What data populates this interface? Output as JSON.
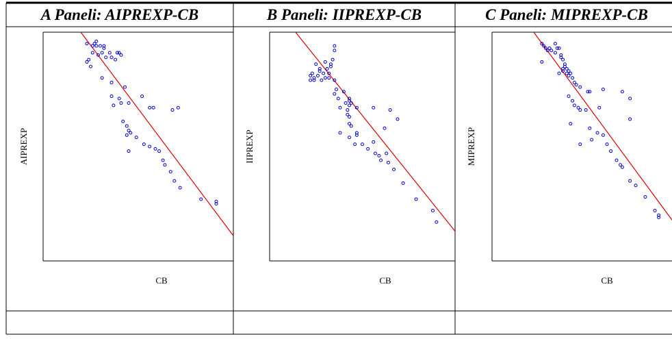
{
  "panels": [
    {
      "title": "A Paneli: AIPREXP-CB",
      "xlabel": "CB",
      "ylabel": "AIPREXP",
      "chart_data": {
        "type": "scatter",
        "title": "A Paneli: AIPREXP-CB",
        "xlabel": "CB",
        "ylabel": "AIPREXP",
        "xlim": [
          0,
          100
        ],
        "ylim": [
          0,
          100
        ],
        "point_color": "#0000cc",
        "line_color": "#dd0000",
        "fit_line": [
          [
            18,
            102
          ],
          [
            100,
            11
          ]
        ],
        "points": [
          [
            23,
            95
          ],
          [
            26,
            94
          ],
          [
            28,
            94
          ],
          [
            30,
            94
          ],
          [
            32,
            94
          ],
          [
            28,
            96
          ],
          [
            27,
            95
          ],
          [
            32,
            93
          ],
          [
            26,
            91
          ],
          [
            29,
            90
          ],
          [
            31,
            91
          ],
          [
            35,
            91
          ],
          [
            39,
            91
          ],
          [
            41,
            90
          ],
          [
            40,
            91
          ],
          [
            36,
            89
          ],
          [
            33,
            89
          ],
          [
            38,
            88
          ],
          [
            24,
            88
          ],
          [
            23,
            87
          ],
          [
            25,
            85
          ],
          [
            31,
            80
          ],
          [
            36,
            78
          ],
          [
            43,
            76
          ],
          [
            52,
            72
          ],
          [
            36,
            72
          ],
          [
            40,
            71
          ],
          [
            41,
            69
          ],
          [
            37,
            68
          ],
          [
            45,
            69
          ],
          [
            56,
            67
          ],
          [
            58,
            67
          ],
          [
            68,
            66
          ],
          [
            71,
            67
          ],
          [
            42,
            61
          ],
          [
            44,
            59
          ],
          [
            45,
            57
          ],
          [
            46,
            56
          ],
          [
            44,
            55
          ],
          [
            49,
            54
          ],
          [
            53,
            51
          ],
          [
            56,
            50
          ],
          [
            59,
            49
          ],
          [
            61,
            48
          ],
          [
            45,
            48
          ],
          [
            63,
            44
          ],
          [
            64,
            42
          ],
          [
            67,
            39
          ],
          [
            69,
            35
          ],
          [
            72,
            32
          ],
          [
            83,
            27
          ],
          [
            91,
            26
          ],
          [
            91,
            25
          ]
        ]
      }
    },
    {
      "title": "B Paneli: IIPREXP-CB",
      "xlabel": "CB",
      "ylabel": "IIPREXP",
      "chart_data": {
        "type": "scatter",
        "title": "B Paneli: IIPREXP-CB",
        "xlabel": "CB",
        "ylabel": "IIPREXP",
        "xlim": [
          0,
          100
        ],
        "ylim": [
          0,
          100
        ],
        "point_color": "#0000cc",
        "line_color": "#dd0000",
        "fit_line": [
          [
            12,
            102
          ],
          [
            100,
            13
          ]
        ],
        "points": [
          [
            35,
            94
          ],
          [
            35,
            92
          ],
          [
            34,
            88
          ],
          [
            30,
            87
          ],
          [
            33,
            86
          ],
          [
            33,
            85
          ],
          [
            25,
            86
          ],
          [
            27,
            84
          ],
          [
            31,
            84
          ],
          [
            32,
            82
          ],
          [
            29,
            82
          ],
          [
            23,
            82
          ],
          [
            22,
            81
          ],
          [
            26,
            81
          ],
          [
            27,
            83
          ],
          [
            24,
            80
          ],
          [
            28,
            79
          ],
          [
            30,
            80
          ],
          [
            32,
            80
          ],
          [
            35,
            79
          ],
          [
            22,
            79
          ],
          [
            24,
            79
          ],
          [
            36,
            75
          ],
          [
            40,
            74
          ],
          [
            35,
            73
          ],
          [
            43,
            71
          ],
          [
            37,
            71
          ],
          [
            41,
            69
          ],
          [
            43,
            70
          ],
          [
            44,
            69
          ],
          [
            43,
            68
          ],
          [
            38,
            67
          ],
          [
            42,
            66
          ],
          [
            47,
            67
          ],
          [
            56,
            67
          ],
          [
            42,
            64
          ],
          [
            43,
            63
          ],
          [
            43,
            60
          ],
          [
            65,
            66
          ],
          [
            69,
            62
          ],
          [
            44,
            59
          ],
          [
            62,
            58
          ],
          [
            43,
            54
          ],
          [
            47,
            55
          ],
          [
            47,
            56
          ],
          [
            38,
            56
          ],
          [
            46,
            51
          ],
          [
            50,
            51
          ],
          [
            56,
            52
          ],
          [
            53,
            49
          ],
          [
            57,
            47
          ],
          [
            63,
            47
          ],
          [
            59,
            46
          ],
          [
            60,
            44
          ],
          [
            64,
            43
          ],
          [
            67,
            40
          ],
          [
            72,
            34
          ],
          [
            79,
            27
          ],
          [
            88,
            22
          ],
          [
            90,
            17
          ]
        ]
      }
    },
    {
      "title": "C Paneli: MIPREXP-CB",
      "xlabel": "CB",
      "ylabel": "MIPREXP",
      "chart_data": {
        "type": "scatter",
        "title": "C Paneli: MIPREXP-CB",
        "xlabel": "CB",
        "ylabel": "MIPREXP",
        "xlim": [
          0,
          100
        ],
        "ylim": [
          0,
          100
        ],
        "point_color": "#0000cc",
        "line_color": "#dd0000",
        "fit_line": [
          [
            20,
            102
          ],
          [
            100,
            11
          ]
        ],
        "points": [
          [
            26,
            95
          ],
          [
            27,
            94
          ],
          [
            28,
            93
          ],
          [
            29,
            92
          ],
          [
            30,
            93
          ],
          [
            31,
            92
          ],
          [
            33,
            91
          ],
          [
            34,
            93
          ],
          [
            35,
            93
          ],
          [
            33,
            95
          ],
          [
            36,
            90
          ],
          [
            37,
            88
          ],
          [
            36,
            89
          ],
          [
            38,
            86
          ],
          [
            38,
            85
          ],
          [
            37,
            84
          ],
          [
            39,
            84
          ],
          [
            40,
            83
          ],
          [
            41,
            82
          ],
          [
            40,
            81
          ],
          [
            35,
            82
          ],
          [
            37,
            83
          ],
          [
            39,
            82
          ],
          [
            42,
            80
          ],
          [
            43,
            78
          ],
          [
            44,
            77
          ],
          [
            46,
            76
          ],
          [
            50,
            74
          ],
          [
            51,
            74
          ],
          [
            58,
            75
          ],
          [
            68,
            74
          ],
          [
            72,
            71
          ],
          [
            40,
            72
          ],
          [
            42,
            70
          ],
          [
            43,
            68
          ],
          [
            45,
            67
          ],
          [
            46,
            66
          ],
          [
            49,
            66
          ],
          [
            56,
            67
          ],
          [
            72,
            62
          ],
          [
            41,
            60
          ],
          [
            51,
            58
          ],
          [
            55,
            56
          ],
          [
            58,
            55
          ],
          [
            52,
            53
          ],
          [
            60,
            51
          ],
          [
            46,
            51
          ],
          [
            62,
            48
          ],
          [
            65,
            44
          ],
          [
            67,
            42
          ],
          [
            68,
            41
          ],
          [
            72,
            35
          ],
          [
            75,
            33
          ],
          [
            80,
            28
          ],
          [
            85,
            22
          ],
          [
            87,
            20
          ],
          [
            87,
            19
          ],
          [
            26,
            87
          ]
        ]
      }
    }
  ],
  "colors": {
    "border": "#000000",
    "background": "#ffffff"
  }
}
